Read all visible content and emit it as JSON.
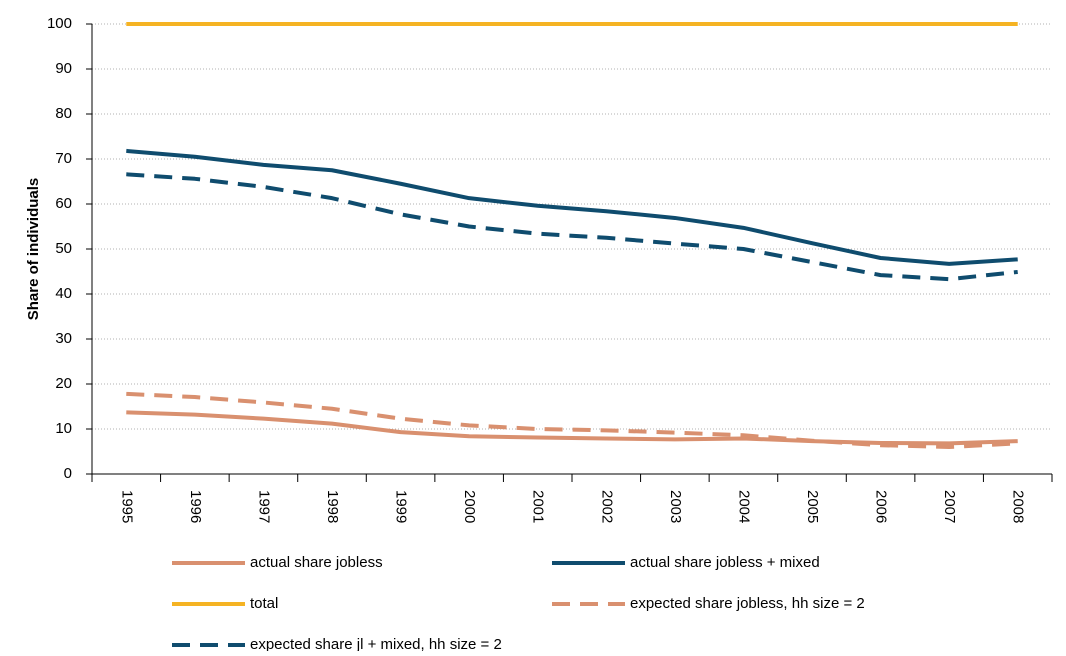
{
  "chart_data": {
    "type": "line",
    "y_label": "Share of individuals",
    "categories": [
      "1995",
      "1996",
      "1997",
      "1998",
      "1999",
      "2000",
      "2001",
      "2002",
      "2003",
      "2004",
      "2005",
      "2006",
      "2007",
      "2008"
    ],
    "ylim": [
      0,
      100
    ],
    "yticks": [
      0,
      10,
      20,
      30,
      40,
      50,
      60,
      70,
      80,
      90,
      100
    ],
    "grid": true,
    "series": [
      {
        "name": "actual share jobless",
        "color": "#d9906f",
        "linestyle": "solid",
        "values": [
          13.7,
          13.2,
          12.3,
          11.2,
          9.3,
          8.4,
          8.1,
          7.9,
          7.7,
          7.9,
          7.3,
          6.9,
          6.8,
          7.3
        ]
      },
      {
        "name": "actual share jobless + mixed",
        "color": "#0f4c6e",
        "linestyle": "solid",
        "values": [
          71.8,
          70.5,
          68.7,
          67.5,
          64.5,
          61.3,
          59.6,
          58.4,
          56.9,
          54.7,
          51.3,
          48.0,
          46.7,
          47.7
        ]
      },
      {
        "name": "total",
        "color": "#f5b323",
        "linestyle": "solid",
        "values": [
          100,
          100,
          100,
          100,
          100,
          100,
          100,
          100,
          100,
          100,
          100,
          100,
          100,
          100
        ]
      },
      {
        "name": "expected share jobless, hh size = 2",
        "color": "#d9906f",
        "linestyle": "dashed",
        "values": [
          17.8,
          17.1,
          15.9,
          14.5,
          12.3,
          10.8,
          10.0,
          9.7,
          9.2,
          8.6,
          7.4,
          6.4,
          6.0,
          6.8
        ]
      },
      {
        "name": "expected share jl + mixed, hh size = 2",
        "color": "#0f4c6e",
        "linestyle": "dashed",
        "values": [
          66.6,
          65.6,
          63.8,
          61.3,
          57.7,
          55.0,
          53.4,
          52.5,
          51.2,
          50.0,
          47.1,
          44.2,
          43.3,
          44.9
        ]
      }
    ]
  }
}
